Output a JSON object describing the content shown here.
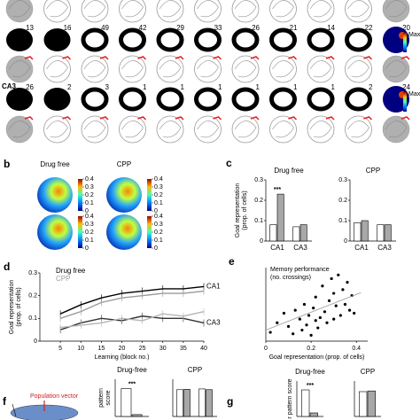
{
  "panel_a": {
    "counts_row1": [
      "13",
      "16",
      "49",
      "42",
      "29",
      "33",
      "26",
      "21",
      "14",
      "22",
      "20"
    ],
    "counts_row2": [
      "26",
      "2",
      "3",
      "1",
      "1",
      "1",
      "1",
      "1",
      "1",
      "2",
      "24"
    ],
    "region": "CA3",
    "max_labels": [
      "Max",
      "Max"
    ]
  },
  "panel_b": {
    "label": "b",
    "titles": [
      "Drug free",
      "CPP"
    ],
    "colorbar_ticks": [
      0.4,
      0.3,
      0.2,
      0.1,
      0
    ]
  },
  "panel_labels": {
    "c": "c",
    "d": "d",
    "e": "e",
    "f": "f",
    "g": "g"
  },
  "population_vector": "Population vector",
  "chart_data": [
    {
      "type": "bar",
      "title": "Drug free",
      "ylabel": [
        "Goal representation",
        "(prop. of cells)"
      ],
      "categories": [
        "CA1",
        "CA3"
      ],
      "series": [
        {
          "color": "#ffffff",
          "values": [
            0.08,
            0.07
          ]
        },
        {
          "color": "#a8a8a8",
          "values": [
            0.23,
            0.08
          ]
        }
      ],
      "ylim": [
        0,
        0.3
      ],
      "yticks": [
        0,
        0.1,
        0.2,
        0.3
      ],
      "annotation": "***"
    },
    {
      "type": "bar",
      "title": "CPP",
      "categories": [
        "CA1",
        "CA3"
      ],
      "series": [
        {
          "color": "#ffffff",
          "values": [
            0.09,
            0.08
          ]
        },
        {
          "color": "#a8a8a8",
          "values": [
            0.1,
            0.08
          ]
        }
      ],
      "ylim": [
        0,
        0.3
      ],
      "yticks": [
        0,
        0.1,
        0.2,
        0.3
      ]
    },
    {
      "type": "line",
      "xlabel": "Learning (block no.)",
      "ylabel": [
        "Goal representation",
        "(prop. of cells)"
      ],
      "x": [
        5,
        10,
        15,
        20,
        25,
        30,
        35,
        40
      ],
      "series": [
        {
          "name": "Drug free",
          "color": "#000000",
          "values": [
            0.12,
            0.16,
            0.19,
            0.21,
            0.22,
            0.23,
            0.23,
            0.24
          ]
        },
        {
          "name": "CPP",
          "color": "#9a9a9a",
          "values": [
            0.1,
            0.13,
            0.17,
            0.19,
            0.2,
            0.21,
            0.21,
            0.22
          ]
        },
        {
          "color": "#333333",
          "values": [
            0.05,
            0.08,
            0.1,
            0.09,
            0.11,
            0.1,
            0.1,
            0.08
          ]
        },
        {
          "color": "#b5b5b5",
          "values": [
            0.06,
            0.07,
            0.08,
            0.1,
            0.09,
            0.12,
            0.11,
            0.13
          ]
        }
      ],
      "series_labels": [
        "CA1",
        "CA3"
      ],
      "xlim": [
        0,
        40
      ],
      "xticks": [
        5,
        10,
        15,
        20,
        25,
        30,
        35,
        40
      ],
      "ylim": [
        0,
        0.3
      ],
      "yticks": [
        0,
        0.1,
        0.2,
        0.3
      ]
    },
    {
      "type": "scatter",
      "xlabel": "Goal representation (prop. of cells)",
      "ylabel": [
        "Memory performance",
        "(no. crossings)"
      ],
      "x": [
        0.02,
        0.05,
        0.08,
        0.1,
        0.12,
        0.13,
        0.15,
        0.16,
        0.17,
        0.18,
        0.19,
        0.2,
        0.21,
        0.22,
        0.22,
        0.23,
        0.24,
        0.25,
        0.26,
        0.27,
        0.28,
        0.29,
        0.3,
        0.3,
        0.31,
        0.32,
        0.33,
        0.34,
        0.35,
        0.36,
        0.37,
        0.38,
        0.39
      ],
      "y": [
        1.2,
        2.5,
        3.8,
        2.0,
        1.0,
        4.2,
        3.0,
        1.5,
        5.0,
        2.2,
        3.5,
        0.8,
        4.5,
        2.8,
        6.0,
        1.8,
        3.2,
        7.5,
        4.0,
        2.5,
        5.5,
        8.5,
        3.0,
        6.5,
        4.8,
        9.0,
        3.5,
        7.0,
        5.0,
        8.0,
        4.2,
        6.2,
        3.8
      ],
      "trend": {
        "x": [
          0,
          0.42
        ],
        "y": [
          1.5,
          6.6
        ]
      },
      "xlim": [
        0,
        0.45
      ],
      "xticks": [
        0,
        0.2,
        0.4
      ],
      "ylim": [
        0,
        10
      ]
    },
    {
      "type": "bar",
      "title": "Drug-free",
      "ylabel": [
        "pattern",
        "score"
      ],
      "categories": [
        null
      ],
      "series": [
        {
          "color": "#ffffff",
          "values": [
            0.75
          ]
        },
        {
          "color": "#a8a8a8",
          "values": [
            0.05
          ]
        }
      ],
      "ylim": [
        0,
        1
      ],
      "annotation": "***"
    },
    {
      "type": "bar",
      "title": "CPP",
      "categories": [
        null,
        null
      ],
      "series": [
        {
          "color": "#ffffff",
          "values": [
            0.72,
            0.74
          ]
        },
        {
          "color": "#a8a8a8",
          "values": [
            0.73,
            0.72
          ]
        }
      ],
      "ylim": [
        0,
        1
      ]
    },
    {
      "type": "bar",
      "title": "Drug-free",
      "ylabel": [
        "r pattern score"
      ],
      "categories": [
        null
      ],
      "series": [
        {
          "color": "#ffffff",
          "values": [
            0.75
          ]
        },
        {
          "color": "#a8a8a8",
          "values": [
            0.1
          ]
        }
      ],
      "ylim": [
        0,
        1
      ],
      "annotation": "***"
    },
    {
      "type": "bar",
      "title": "CPP",
      "categories": [
        null
      ],
      "series": [
        {
          "color": "#ffffff",
          "values": [
            0.7
          ]
        },
        {
          "color": "#a8a8a8",
          "values": [
            0.72
          ]
        }
      ],
      "ylim": [
        0,
        1
      ]
    }
  ]
}
